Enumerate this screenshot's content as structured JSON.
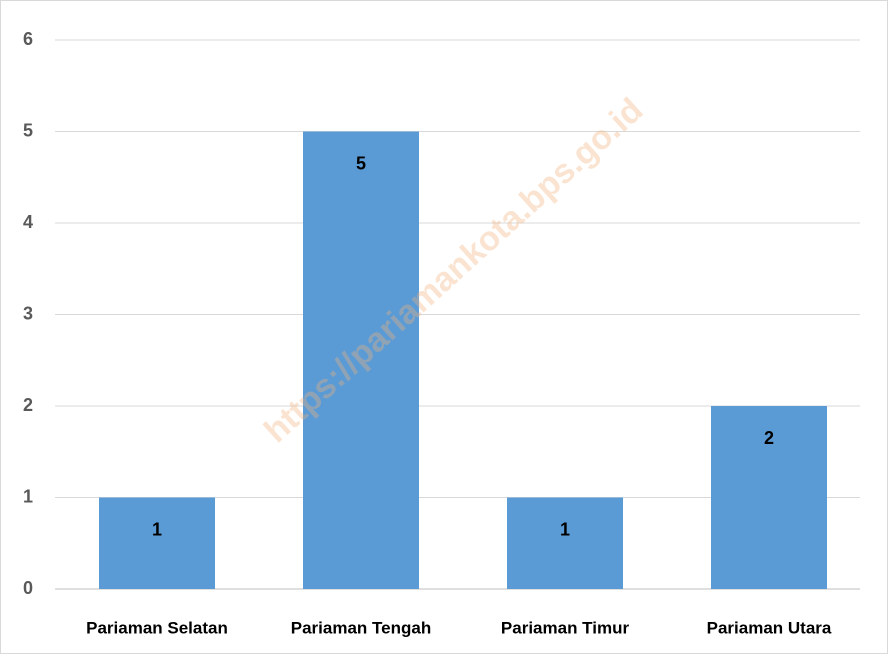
{
  "chart_data": {
    "type": "bar",
    "categories": [
      "Pariaman Selatan",
      "Pariaman Tengah",
      "Pariaman Timur",
      "Pariaman Utara"
    ],
    "values": [
      1,
      5,
      1,
      2
    ],
    "color": "#5b9bd5",
    "ylim": [
      0,
      6
    ],
    "yticks": [
      0,
      1,
      2,
      3,
      4,
      5,
      6
    ],
    "grid": true,
    "watermark": "https://pariamankota.bps.go.id"
  }
}
